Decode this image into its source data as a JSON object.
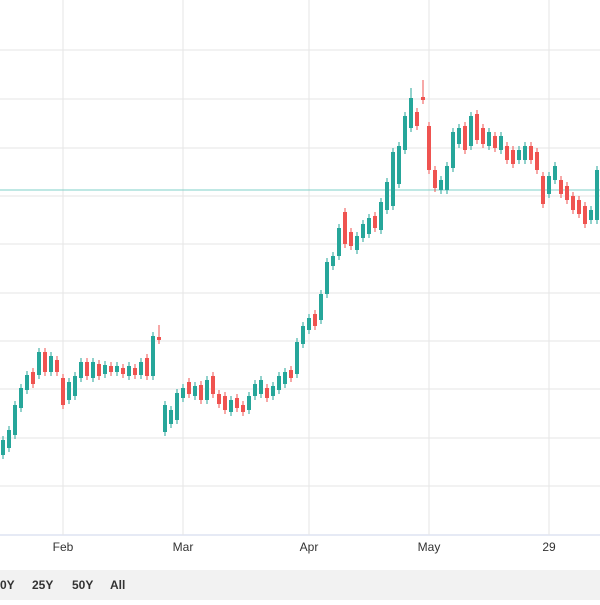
{
  "chart_data": {
    "type": "candlestick",
    "categories": [
      null,
      null,
      null,
      null,
      null,
      null,
      null,
      null,
      null,
      null,
      "Feb",
      null,
      null,
      null,
      null,
      null,
      null,
      null,
      null,
      null,
      null,
      null,
      null,
      null,
      null,
      null,
      null,
      null,
      null,
      null,
      "Mar",
      null,
      null,
      null,
      null,
      null,
      null,
      null,
      null,
      null,
      null,
      null,
      null,
      null,
      null,
      null,
      null,
      null,
      null,
      null,
      null,
      "Apr",
      null,
      null,
      null,
      null,
      null,
      null,
      null,
      null,
      null,
      null,
      null,
      null,
      null,
      null,
      null,
      null,
      null,
      null,
      null,
      "May",
      null,
      null,
      null,
      null,
      null,
      null,
      null,
      null,
      null,
      null,
      null,
      null,
      null,
      null,
      null,
      null,
      null,
      null,
      null,
      "29",
      null,
      null,
      null,
      null,
      null,
      null,
      null,
      null
    ],
    "open": [
      75,
      82,
      95,
      122,
      140,
      158,
      155,
      178,
      158,
      170,
      152,
      130,
      134,
      152,
      168,
      152,
      166,
      156,
      164,
      158,
      162,
      154,
      162,
      155,
      172,
      154,
      193,
      98,
      106,
      110,
      132,
      148,
      134,
      145,
      130,
      154,
      136,
      134,
      118,
      132,
      125,
      120,
      134,
      136,
      142,
      134,
      140,
      146,
      160,
      156,
      186,
      200,
      216,
      210,
      236,
      264,
      274,
      318,
      298,
      280,
      292,
      296,
      314,
      300,
      320,
      324,
      346,
      380,
      402,
      418,
      433,
      404,
      360,
      340,
      340,
      362,
      386,
      404,
      384,
      416,
      402,
      384,
      394,
      380,
      384,
      380,
      370,
      370,
      384,
      378,
      354,
      336,
      350,
      350,
      344,
      334,
      330,
      324,
      310,
      310
    ],
    "high": [
      94,
      104,
      129,
      146,
      159,
      162,
      182,
      182,
      178,
      174,
      156,
      152,
      158,
      172,
      172,
      172,
      170,
      169,
      168,
      168,
      166,
      168,
      166,
      172,
      176,
      198,
      205,
      129,
      124,
      141,
      146,
      152,
      148,
      149,
      154,
      158,
      140,
      138,
      134,
      136,
      129,
      138,
      150,
      154,
      146,
      148,
      158,
      162,
      164,
      192,
      208,
      216,
      220,
      240,
      272,
      278,
      306,
      322,
      302,
      298,
      310,
      316,
      318,
      332,
      352,
      382,
      388,
      418,
      442,
      422,
      450,
      408,
      364,
      354,
      368,
      402,
      406,
      408,
      418,
      420,
      406,
      402,
      398,
      398,
      388,
      384,
      384,
      388,
      388,
      382,
      358,
      358,
      368,
      354,
      348,
      338,
      334,
      328,
      324,
      364
    ],
    "low": [
      71,
      78,
      91,
      118,
      136,
      142,
      151,
      154,
      154,
      154,
      121,
      126,
      130,
      148,
      150,
      148,
      150,
      152,
      154,
      154,
      152,
      150,
      151,
      151,
      150,
      150,
      186,
      94,
      102,
      106,
      128,
      132,
      130,
      126,
      126,
      132,
      122,
      116,
      114,
      118,
      114,
      116,
      130,
      132,
      128,
      130,
      136,
      142,
      148,
      152,
      182,
      196,
      200,
      206,
      232,
      260,
      270,
      282,
      280,
      276,
      288,
      292,
      298,
      296,
      316,
      320,
      342,
      376,
      398,
      400,
      426,
      356,
      338,
      336,
      336,
      358,
      382,
      376,
      380,
      386,
      382,
      380,
      378,
      376,
      366,
      362,
      366,
      366,
      366,
      356,
      322,
      332,
      346,
      332,
      326,
      316,
      312,
      302,
      306,
      306
    ],
    "close": [
      90,
      100,
      125,
      142,
      155,
      146,
      178,
      158,
      174,
      158,
      125,
      148,
      154,
      168,
      154,
      168,
      154,
      165,
      158,
      164,
      156,
      164,
      155,
      168,
      154,
      194,
      190,
      125,
      120,
      137,
      142,
      136,
      144,
      130,
      150,
      136,
      126,
      120,
      130,
      122,
      118,
      134,
      146,
      150,
      132,
      144,
      154,
      158,
      152,
      188,
      204,
      212,
      204,
      236,
      268,
      274,
      302,
      286,
      284,
      294,
      306,
      312,
      302,
      328,
      348,
      378,
      384,
      414,
      432,
      404,
      430,
      360,
      342,
      350,
      364,
      398,
      402,
      380,
      414,
      390,
      386,
      398,
      382,
      394,
      370,
      366,
      380,
      384,
      370,
      360,
      326,
      354,
      364,
      336,
      330,
      320,
      316,
      306,
      320,
      360
    ],
    "up_color": "#26a69a",
    "down_color": "#ef5350",
    "price_line": 340,
    "price_line_color": "#7fd0c8",
    "ylim": [
      0,
      530
    ],
    "yticks": [
      44,
      92,
      141,
      189,
      237,
      286,
      334,
      382,
      431,
      480
    ],
    "grid": true
  },
  "range_selector": {
    "buttons": [
      "0Y",
      "25Y",
      "50Y",
      "All"
    ]
  }
}
